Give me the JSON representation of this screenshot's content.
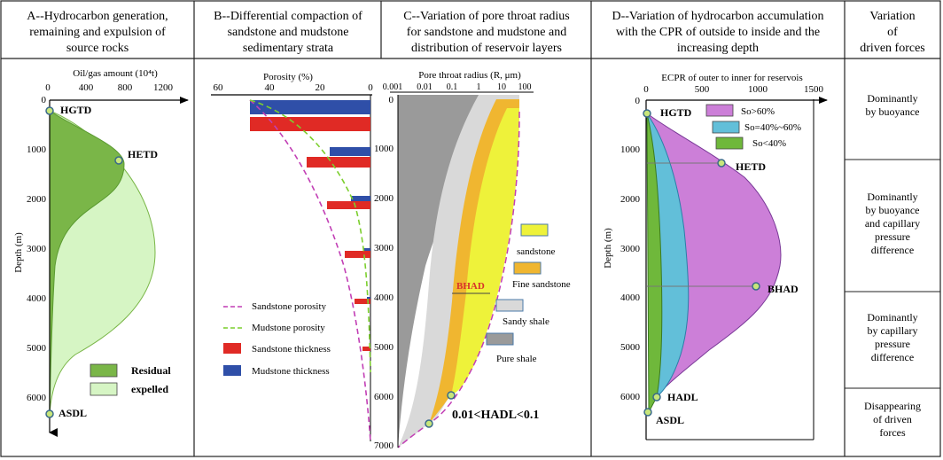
{
  "panelA": {
    "title_1": "A--Hydrocarbon generation,",
    "title_2": "remaining and expulsion of",
    "title_3": "source rocks",
    "axis_label": "Oil/gas amount (10⁴t)",
    "x_ticks": [
      "0",
      "400",
      "800",
      "1200"
    ],
    "y_label": "Depth (m)",
    "y_ticks": [
      "0",
      "1000",
      "2000",
      "3000",
      "4000",
      "5000",
      "6000"
    ],
    "point_hgtd": "HGTD",
    "point_hetd": "HETD",
    "point_asdl": "ASDL",
    "legend_residual": "Residual",
    "legend_expelled": "expelled",
    "colors": {
      "residual": "#7ab648",
      "expelled": "#d6f5c4",
      "point": "#c8e67a"
    }
  },
  "panelB": {
    "title_1": "B--Differential compaction of",
    "title_2": "sandstone and mudstone",
    "title_3": "sedimentary strata",
    "axis_label": "Porosity (%)",
    "x_ticks": [
      "60",
      "40",
      "20",
      "0"
    ],
    "legend_sandstone_porosity": "Sandstone porosity",
    "legend_mudstone_porosity": "Mudstone porosity",
    "legend_sandstone_thickness": "Sandstone thickness",
    "legend_mudstone_thickness": "Mudstone thickness",
    "colors": {
      "sandstone": "#e02a25",
      "mudstone": "#2f4fa8",
      "sand_curve": "#c23fb5",
      "mud_curve": "#7ccf2e"
    }
  },
  "panelC": {
    "title_1": "C--Variation of pore throat radius",
    "title_2": "for sandstone and  mudstone and",
    "title_3": "distribution of reservoir layers",
    "axis_label": "Pore throat radius (R, μm)",
    "x_ticks": [
      "0.001",
      "0.01",
      "0.1",
      "1",
      "10",
      "100"
    ],
    "y_ticks": [
      "0",
      "1000",
      "2000",
      "3000",
      "4000",
      "5000",
      "6000",
      "7000"
    ],
    "bhad_label": "BHAD",
    "hadl_text": "0.01<HADL<0.1",
    "legend_sandstone": "sandstone",
    "legend_fine_sandstone": "Fine sandstone",
    "legend_sandy_shale": "Sandy shale",
    "legend_pure_shale": "Pure shale",
    "colors": {
      "sandstone": "#eef23a",
      "fine": "#f0b630",
      "sandy": "#d9d9d9",
      "pure": "#9a9a9a"
    }
  },
  "panelD": {
    "title_1": "D--Variation of  hydrocarbon accumulation",
    "title_2": "with the CPR of outside to inside and the",
    "title_3": "increasing depth",
    "axis_label": "ECPR of outer to inner for reservois",
    "x_ticks": [
      "0",
      "500",
      "1000",
      "1500"
    ],
    "y_label": "Depth (m)",
    "y_ticks": [
      "0",
      "1000",
      "2000",
      "3000",
      "4000",
      "5000",
      "6000"
    ],
    "point_hgtd": "HGTD",
    "point_hetd": "HETD",
    "point_bhad": "BHAD",
    "point_hadl": "HADL",
    "point_asdl": "ASDL",
    "legend_so60": "So>60%",
    "legend_so40_60": "So=40%~60%",
    "legend_so40": "So<40%",
    "colors": {
      "so60": "#cc7fd8",
      "so40_60": "#62bfd9",
      "so40": "#6fb83b"
    }
  },
  "panelE": {
    "title_1": "Variation",
    "title_2": "of",
    "title_3": "driven forces",
    "rows": [
      [
        "Dominantly",
        "by buoyance"
      ],
      [
        "Dominantly",
        "by buoyance",
        "and capillary",
        "pressure",
        "difference"
      ],
      [
        "Dominantly",
        "by capillary",
        "pressure",
        "difference"
      ],
      [
        "Disappearing",
        "of driven",
        "forces"
      ]
    ]
  }
}
